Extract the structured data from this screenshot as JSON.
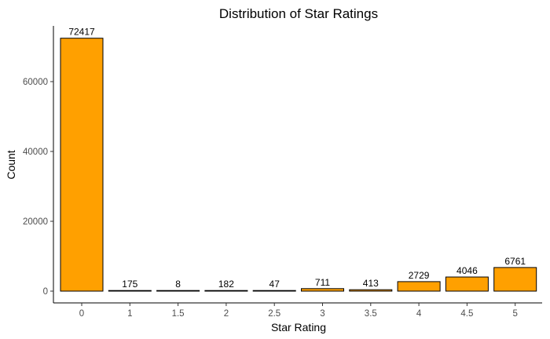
{
  "chart_data": {
    "type": "bar",
    "title": "Distribution of Star Ratings",
    "xlabel": "Star Rating",
    "ylabel": "Count",
    "categories": [
      "0",
      "1",
      "1.5",
      "2",
      "2.5",
      "3",
      "3.5",
      "4",
      "4.5",
      "5"
    ],
    "values": [
      72417,
      175,
      8,
      182,
      47,
      711,
      413,
      2729,
      4046,
      6761
    ],
    "data_labels": [
      "72417",
      "175",
      "8",
      "182",
      "47",
      "711",
      "413",
      "2729",
      "4046",
      "6761"
    ],
    "ylim": [
      0,
      76000
    ],
    "yticks": [
      0,
      20000,
      40000,
      60000
    ],
    "ytick_labels": [
      "0",
      "20000",
      "40000",
      "60000"
    ],
    "bar_color": "#FFA000",
    "grid": false,
    "legend": "none"
  }
}
